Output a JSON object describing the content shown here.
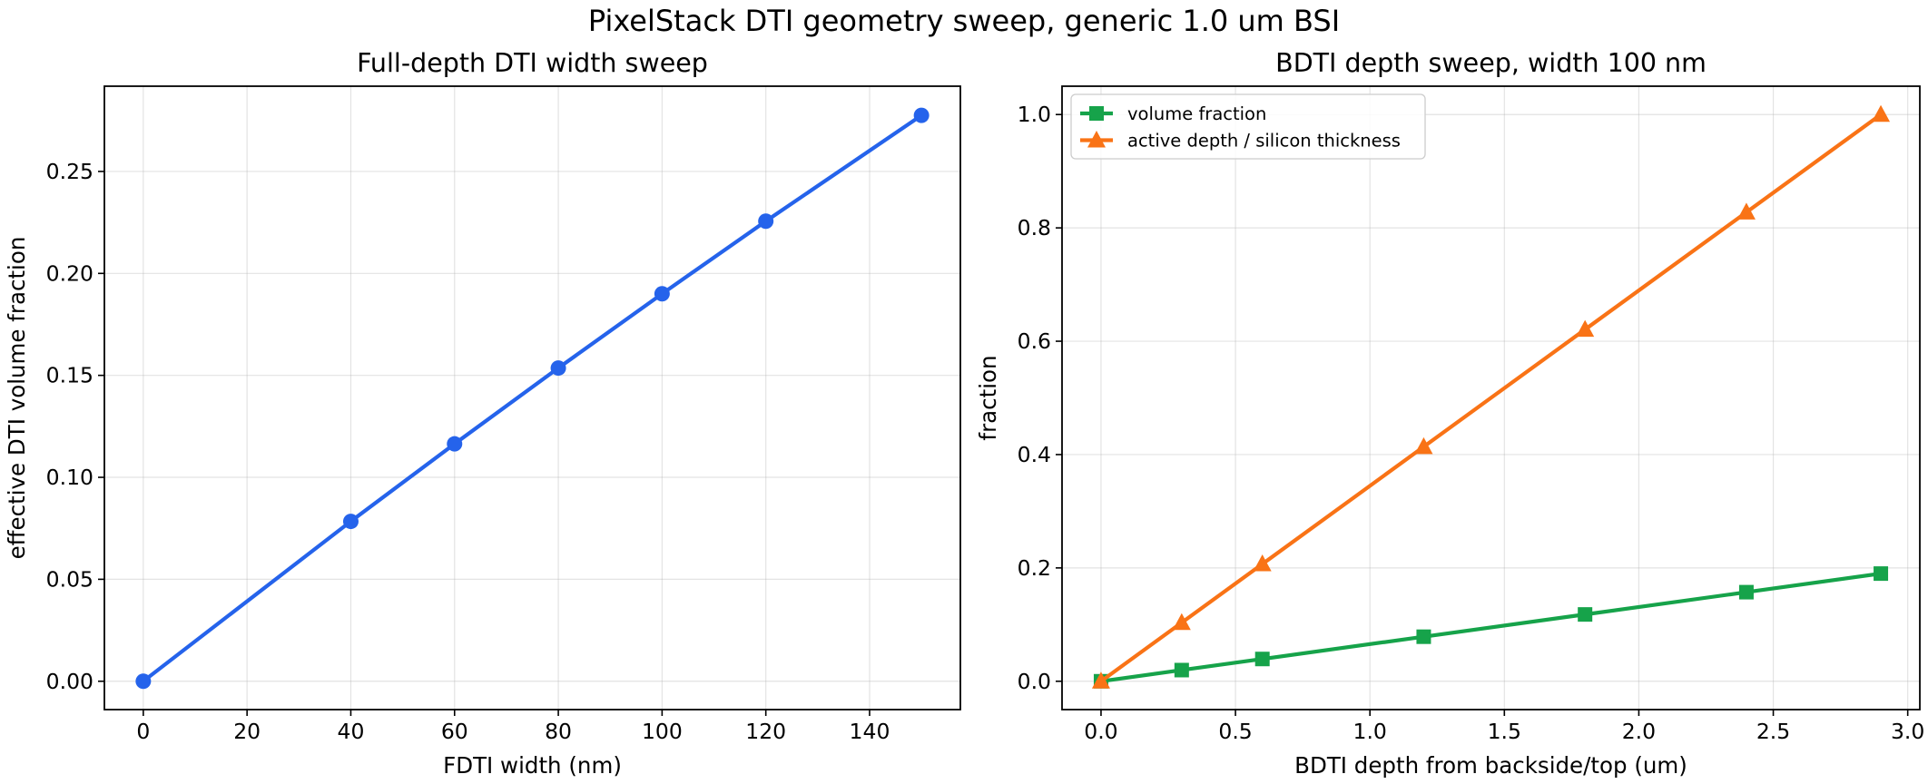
{
  "figure_title": "PixelStack DTI geometry sweep, generic 1.0 um BSI",
  "chart_data": [
    {
      "type": "line",
      "title": "Full-depth DTI width sweep",
      "xlabel": "FDTI width (nm)",
      "ylabel": "effective DTI volume fraction",
      "xlim": [
        -7.5,
        157.5
      ],
      "ylim": [
        -0.0139,
        0.2918
      ],
      "xticks": [
        0,
        20,
        40,
        60,
        80,
        100,
        120,
        140
      ],
      "xtick_labels": [
        "0",
        "20",
        "40",
        "60",
        "80",
        "100",
        "120",
        "140"
      ],
      "yticks": [
        0,
        0.05,
        0.1,
        0.15,
        0.2,
        0.25
      ],
      "ytick_labels": [
        "0.00",
        "0.05",
        "0.10",
        "0.15",
        "0.20",
        "0.25"
      ],
      "grid": true,
      "series": [
        {
          "color": "#2563eb",
          "marker": "circle",
          "x": [
            0,
            40,
            60,
            80,
            100,
            120,
            150
          ],
          "y": [
            0.0,
            0.0784,
            0.1164,
            0.1536,
            0.19,
            0.2256,
            0.2775
          ]
        }
      ]
    },
    {
      "type": "line",
      "title": "BDTI depth sweep, width 100 nm",
      "xlabel": "BDTI depth from backside/top (um)",
      "ylabel": "fraction",
      "xlim": [
        -0.145,
        3.045
      ],
      "ylim": [
        -0.05,
        1.05
      ],
      "xticks": [
        0,
        0.5,
        1,
        1.5,
        2,
        2.5,
        3
      ],
      "xtick_labels": [
        "0.0",
        "0.5",
        "1.0",
        "1.5",
        "2.0",
        "2.5",
        "3.0"
      ],
      "yticks": [
        0,
        0.2,
        0.4,
        0.6,
        0.8,
        1.0
      ],
      "ytick_labels": [
        "0.0",
        "0.2",
        "0.4",
        "0.6",
        "0.8",
        "1.0"
      ],
      "grid": true,
      "legend_position": "top-left",
      "series": [
        {
          "name": "volume fraction",
          "color": "#16a34a",
          "marker": "square",
          "x": [
            0,
            0.3,
            0.6,
            1.2,
            1.8,
            2.4,
            2.9
          ],
          "y": [
            0.0,
            0.0197,
            0.0393,
            0.0786,
            0.1179,
            0.1572,
            0.19
          ]
        },
        {
          "name": "active depth / silicon thickness",
          "color": "#f97316",
          "marker": "triangle",
          "x": [
            0,
            0.3,
            0.6,
            1.2,
            1.8,
            2.4,
            2.9
          ],
          "y": [
            0.0,
            0.1034,
            0.2069,
            0.4138,
            0.6207,
            0.8276,
            1.0
          ]
        }
      ]
    }
  ]
}
